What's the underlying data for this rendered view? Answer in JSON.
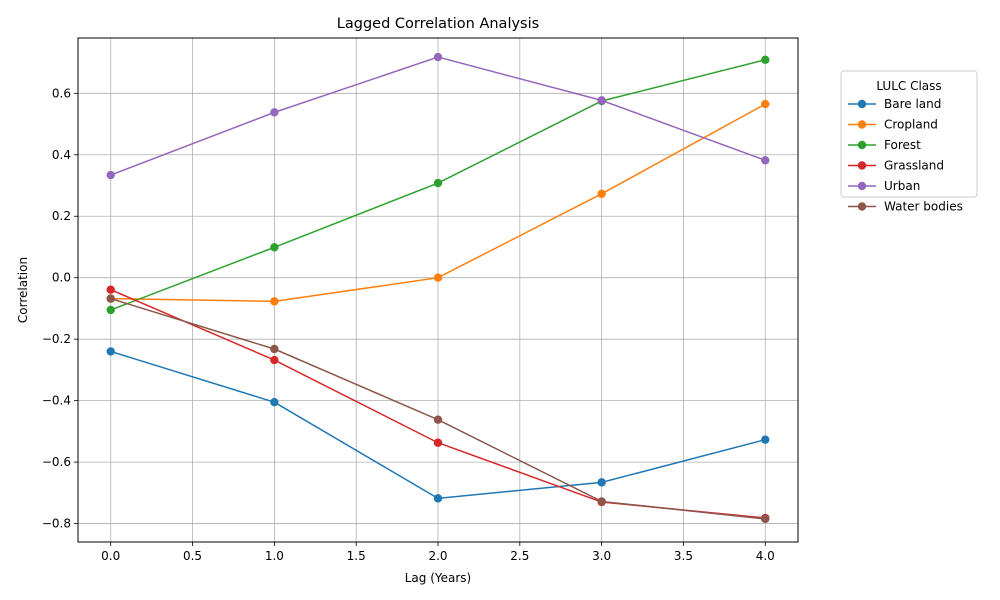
{
  "chart_data": {
    "type": "line",
    "title": "Lagged Correlation Analysis",
    "xlabel": "Lag (Years)",
    "ylabel": "Correlation",
    "x": [
      0,
      1,
      2,
      3,
      4
    ],
    "xlim": [
      -0.2,
      4.2
    ],
    "ylim": [
      -0.86,
      0.78
    ],
    "xticks": [
      0.0,
      0.5,
      1.0,
      1.5,
      2.0,
      2.5,
      3.0,
      3.5,
      4.0
    ],
    "xtick_labels": [
      "0.0",
      "0.5",
      "1.0",
      "1.5",
      "2.0",
      "2.5",
      "3.0",
      "3.5",
      "4.0"
    ],
    "yticks": [
      -0.8,
      -0.6,
      -0.4,
      -0.2,
      0.0,
      0.2,
      0.4,
      0.6
    ],
    "ytick_labels": [
      "−0.8",
      "−0.6",
      "−0.4",
      "−0.2",
      "0.0",
      "0.2",
      "0.4",
      "0.6"
    ],
    "grid": true,
    "legend": {
      "title": "LULC Class",
      "placement": "outside-right"
    },
    "series": [
      {
        "name": "Bare land",
        "color": "#1f77b4",
        "values": [
          -0.24,
          -0.405,
          -0.718,
          -0.666,
          -0.527
        ]
      },
      {
        "name": "Cropland",
        "color": "#ff7f0e",
        "values": [
          -0.068,
          -0.077,
          0.0,
          0.273,
          0.565
        ]
      },
      {
        "name": "Forest",
        "color": "#2ca02c",
        "values": [
          -0.105,
          0.099,
          0.308,
          0.575,
          0.709
        ]
      },
      {
        "name": "Grassland",
        "color": "#d62728",
        "values": [
          -0.039,
          -0.268,
          -0.537,
          -0.73,
          -0.782
        ]
      },
      {
        "name": "Urban",
        "color": "#9467bd",
        "values": [
          0.334,
          0.538,
          0.718,
          0.577,
          0.382
        ]
      },
      {
        "name": "Water bodies",
        "color": "#8c564b",
        "values": [
          -0.068,
          -0.232,
          -0.462,
          -0.728,
          -0.785
        ]
      }
    ]
  }
}
